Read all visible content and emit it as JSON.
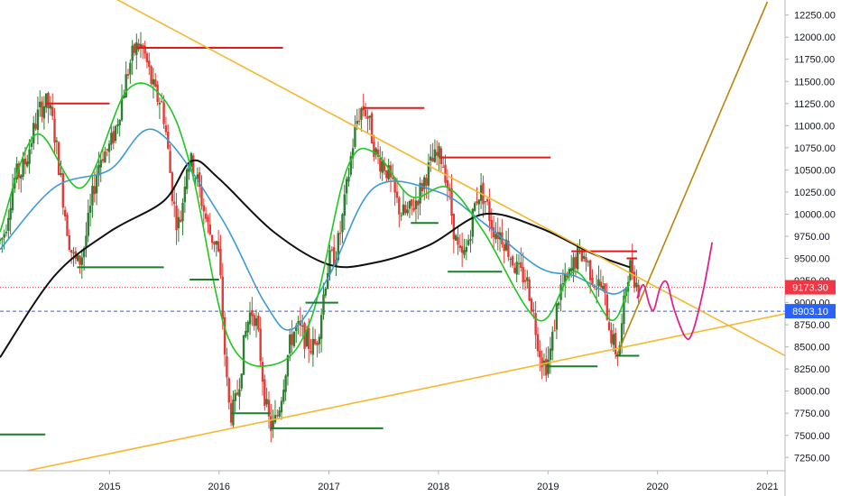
{
  "chart_data": {
    "type": "candlestick",
    "title": "",
    "xlabel": "",
    "ylabel": "",
    "grid": false,
    "y_axis": {
      "position": "right",
      "ylim": [
        7100,
        12420
      ],
      "ticks": [
        7250,
        7500,
        7750,
        8000,
        8250,
        8500,
        8750,
        9000,
        9250,
        9500,
        9750,
        10000,
        10250,
        10500,
        10750,
        11000,
        11250,
        11500,
        11750,
        12000,
        12250
      ],
      "tick_labels": [
        "7250.00",
        "7500.00",
        "7750.00",
        "8000.00",
        "8250.00",
        "8500.00",
        "8750.00",
        "9000.00",
        "9250.00",
        "9500.00",
        "9750.00",
        "10000.00",
        "10250.00",
        "10500.00",
        "10750.00",
        "11000.00",
        "11250.00",
        "11500.00",
        "11750.00",
        "12000.00",
        "12250.00"
      ]
    },
    "x_axis": {
      "xlim": [
        "2014-01-01",
        "2021-03-01"
      ],
      "ticks": [
        "2015-01-01",
        "2016-01-01",
        "2017-01-01",
        "2018-01-01",
        "2019-01-01",
        "2020-01-01",
        "2021-01-01"
      ],
      "tick_labels": [
        "2015",
        "2016",
        "2017",
        "2018",
        "2019",
        "2020",
        "2021"
      ]
    },
    "price_labels": [
      {
        "value": 9173.3,
        "text": "9173.30",
        "color": "#f23645",
        "line": "dotted"
      },
      {
        "value": 8903.1,
        "text": "8903.10",
        "color": "#2962ff",
        "line": "dashed"
      }
    ],
    "colors": {
      "up": "#26a69a",
      "down": "#d32f2f",
      "green_candle": "#2e7d32",
      "red_candle": "#e53935",
      "ma_fast": "#1ec71e",
      "ma_fast_red": "#e01f1f",
      "ma_mid": "#3c9bd6",
      "ma_slow": "#111111",
      "trend": "#f5b82e",
      "trend_up": "#b8860b",
      "projection": "#e0248c",
      "support": "#1b7f2a",
      "resistance": "#e31a1a"
    },
    "ohlc_keypoints": [
      [
        "2014-01-01",
        9700
      ],
      [
        "2014-03-01",
        10450
      ],
      [
        "2014-06-01",
        11250
      ],
      [
        "2014-09-15",
        9450
      ],
      [
        "2014-12-15",
        10700
      ],
      [
        "2015-04-10",
        11900
      ],
      [
        "2015-06-15",
        11300
      ],
      [
        "2015-08-20",
        9900
      ],
      [
        "2015-09-20",
        10600
      ],
      [
        "2015-12-20",
        9700
      ],
      [
        "2016-02-10",
        7750
      ],
      [
        "2016-04-20",
        8900
      ],
      [
        "2016-06-24",
        7600
      ],
      [
        "2016-09-15",
        8700
      ],
      [
        "2016-11-10",
        8500
      ],
      [
        "2017-01-10",
        9500
      ],
      [
        "2017-04-25",
        11200
      ],
      [
        "2017-06-20",
        10600
      ],
      [
        "2017-09-10",
        10000
      ],
      [
        "2018-01-05",
        10650
      ],
      [
        "2018-03-20",
        9500
      ],
      [
        "2018-05-20",
        10250
      ],
      [
        "2018-07-15",
        9800
      ],
      [
        "2018-10-10",
        9300
      ],
      [
        "2018-12-25",
        8300
      ],
      [
        "2019-02-20",
        9200
      ],
      [
        "2019-04-20",
        9550
      ],
      [
        "2019-06-20",
        9200
      ],
      [
        "2019-08-20",
        8450
      ],
      [
        "2019-10-01",
        9400
      ],
      [
        "2019-11-01",
        9180
      ]
    ],
    "moving_averages": [
      {
        "color_key": "ma_slow",
        "points": [
          [
            "2014-01-01",
            8380
          ],
          [
            "2014-07-01",
            9300
          ],
          [
            "2015-01-01",
            9800
          ],
          [
            "2015-07-01",
            10150
          ],
          [
            "2015-10-01",
            10600
          ],
          [
            "2016-01-01",
            10400
          ],
          [
            "2016-07-01",
            9800
          ],
          [
            "2017-01-01",
            9430
          ],
          [
            "2017-06-01",
            9450
          ],
          [
            "2017-12-01",
            9650
          ],
          [
            "2018-06-01",
            10000
          ],
          [
            "2018-12-01",
            9850
          ],
          [
            "2019-06-01",
            9550
          ],
          [
            "2019-10-01",
            9400
          ]
        ]
      },
      {
        "color_key": "ma_mid",
        "points": [
          [
            "2014-01-01",
            9600
          ],
          [
            "2014-07-01",
            10300
          ],
          [
            "2015-01-01",
            10500
          ],
          [
            "2015-06-01",
            10950
          ],
          [
            "2016-01-01",
            10000
          ],
          [
            "2016-06-01",
            9000
          ],
          [
            "2016-09-01",
            8700
          ],
          [
            "2017-01-01",
            9300
          ],
          [
            "2017-06-01",
            10300
          ],
          [
            "2018-01-01",
            10250
          ],
          [
            "2018-06-01",
            9900
          ],
          [
            "2018-12-01",
            9400
          ],
          [
            "2019-04-01",
            9300
          ],
          [
            "2019-08-01",
            9100
          ],
          [
            "2019-10-01",
            9200
          ]
        ]
      },
      {
        "color_key": "ma_fast",
        "points": [
          [
            "2014-01-01",
            9800
          ],
          [
            "2014-05-01",
            10900
          ],
          [
            "2014-10-01",
            10300
          ],
          [
            "2015-03-01",
            11400
          ],
          [
            "2015-07-01",
            11300
          ],
          [
            "2015-10-01",
            10500
          ],
          [
            "2016-02-01",
            8600
          ],
          [
            "2016-07-01",
            8300
          ],
          [
            "2016-11-01",
            8800
          ],
          [
            "2017-03-01",
            10500
          ],
          [
            "2017-06-01",
            10700
          ],
          [
            "2017-10-01",
            10200
          ],
          [
            "2018-02-01",
            10300
          ],
          [
            "2018-06-01",
            9800
          ],
          [
            "2018-12-01",
            8800
          ],
          [
            "2019-04-01",
            9350
          ],
          [
            "2019-08-01",
            8800
          ],
          [
            "2019-10-01",
            9250
          ]
        ]
      }
    ],
    "horizontal_levels": [
      {
        "color_key": "resistance",
        "y": 11250,
        "x": [
          "2014-06-01",
          "2015-01-01"
        ]
      },
      {
        "color_key": "resistance",
        "y": 11880,
        "x": [
          "2015-04-01",
          "2016-08-01"
        ]
      },
      {
        "color_key": "resistance",
        "y": 11200,
        "x": [
          "2017-04-25",
          "2017-11-15"
        ]
      },
      {
        "color_key": "resistance",
        "y": 10640,
        "x": [
          "2018-01-05",
          "2019-01-10"
        ]
      },
      {
        "color_key": "resistance",
        "y": 9580,
        "x": [
          "2019-03-20",
          "2019-10-25"
        ]
      },
      {
        "color_key": "resistance",
        "y": 9500,
        "x": [
          "2019-09-20",
          "2019-10-25"
        ]
      },
      {
        "color_key": "support",
        "y": 9400,
        "x": [
          "2014-09-15",
          "2015-07-01"
        ]
      },
      {
        "color_key": "support",
        "y": 9260,
        "x": [
          "2015-09-25",
          "2016-01-01"
        ]
      },
      {
        "color_key": "support",
        "y": 7750,
        "x": [
          "2016-02-10",
          "2016-06-20"
        ]
      },
      {
        "color_key": "support",
        "y": 7580,
        "x": [
          "2016-06-20",
          "2017-07-01"
        ]
      },
      {
        "color_key": "support",
        "y": 9000,
        "x": [
          "2016-10-15",
          "2017-02-01"
        ]
      },
      {
        "color_key": "support",
        "y": 9900,
        "x": [
          "2017-10-01",
          "2018-01-01"
        ]
      },
      {
        "color_key": "support",
        "y": 9350,
        "x": [
          "2018-02-01",
          "2018-08-01"
        ]
      },
      {
        "color_key": "support",
        "y": 8280,
        "x": [
          "2018-12-25",
          "2019-06-15"
        ]
      },
      {
        "color_key": "support",
        "y": 8400,
        "x": [
          "2019-08-15",
          "2019-11-01"
        ]
      },
      {
        "color_key": "support",
        "y": 7510,
        "x": [
          "2014-01-01",
          "2014-06-01"
        ]
      }
    ],
    "trend_lines": [
      {
        "color_key": "trend",
        "points": [
          [
            "2015-01-01",
            12470
          ],
          [
            "2021-07-01",
            8180
          ]
        ]
      },
      {
        "color_key": "trend",
        "points": [
          [
            "2014-04-01",
            7100
          ],
          [
            "2021-07-01",
            8960
          ]
        ]
      },
      {
        "color_key": "trend_up",
        "points": [
          [
            "2019-08-20",
            8420
          ],
          [
            "2021-01-01",
            12400
          ]
        ]
      }
    ],
    "projection_path": [
      [
        "2019-10-25",
        9050
      ],
      [
        "2019-11-15",
        9200
      ],
      [
        "2019-12-05",
        8980
      ],
      [
        "2019-12-20",
        8920
      ],
      [
        "2020-01-10",
        9170
      ],
      [
        "2020-02-01",
        9230
      ],
      [
        "2020-02-25",
        8930
      ],
      [
        "2020-04-01",
        8620
      ],
      [
        "2020-04-25",
        8650
      ],
      [
        "2020-06-01",
        9130
      ],
      [
        "2020-07-01",
        9680
      ]
    ]
  }
}
